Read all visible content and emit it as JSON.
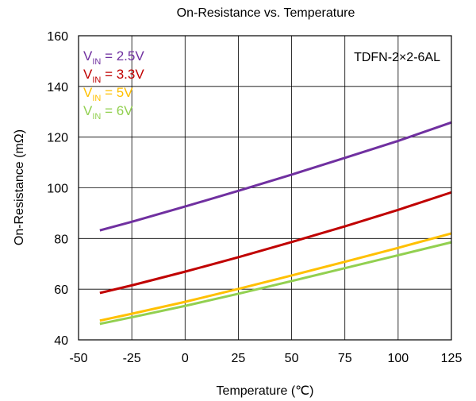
{
  "chart_data": {
    "type": "line",
    "title": "On-Resistance vs. Temperature",
    "xlabel": "Temperature (℃)",
    "ylabel": "On-Resistance (mΩ)",
    "annotation": "TDFN-2×2-6AL",
    "xlim": [
      -50,
      125
    ],
    "ylim": [
      40,
      160
    ],
    "xticks": [
      "-50",
      "-25",
      "0",
      "25",
      "50",
      "75",
      "100",
      "125"
    ],
    "yticks": [
      "40",
      "60",
      "80",
      "100",
      "120",
      "140",
      "160"
    ],
    "grid": true,
    "legend_position": "top-left",
    "series": [
      {
        "name": "V",
        "sub": "IN",
        "suffix": " = 2.5V",
        "color": "#7030a0",
        "x": [
          -40,
          -25,
          0,
          25,
          50,
          75,
          100,
          125
        ],
        "y": [
          83.2,
          86.6,
          92.6,
          98.8,
          105.2,
          111.8,
          118.5,
          125.8
        ]
      },
      {
        "name": "V",
        "sub": "IN",
        "suffix": " = 3.3V",
        "color": "#c00000",
        "x": [
          -40,
          -25,
          0,
          25,
          50,
          75,
          100,
          125
        ],
        "y": [
          58.5,
          61.5,
          66.9,
          72.6,
          78.6,
          84.8,
          91.3,
          98.2
        ]
      },
      {
        "name": "V",
        "sub": "IN",
        "suffix": " = 5V",
        "color": "#ffc000",
        "x": [
          -40,
          -25,
          0,
          25,
          50,
          75,
          100,
          125
        ],
        "y": [
          47.6,
          50.3,
          55.0,
          60.1,
          65.4,
          70.8,
          76.3,
          82.0
        ]
      },
      {
        "name": "V",
        "sub": "IN",
        "suffix": " = 6V",
        "color": "#92d050",
        "x": [
          -40,
          -25,
          0,
          25,
          50,
          75,
          100,
          125
        ],
        "y": [
          46.3,
          48.9,
          53.4,
          58.2,
          63.2,
          68.3,
          73.4,
          78.5
        ]
      }
    ]
  }
}
